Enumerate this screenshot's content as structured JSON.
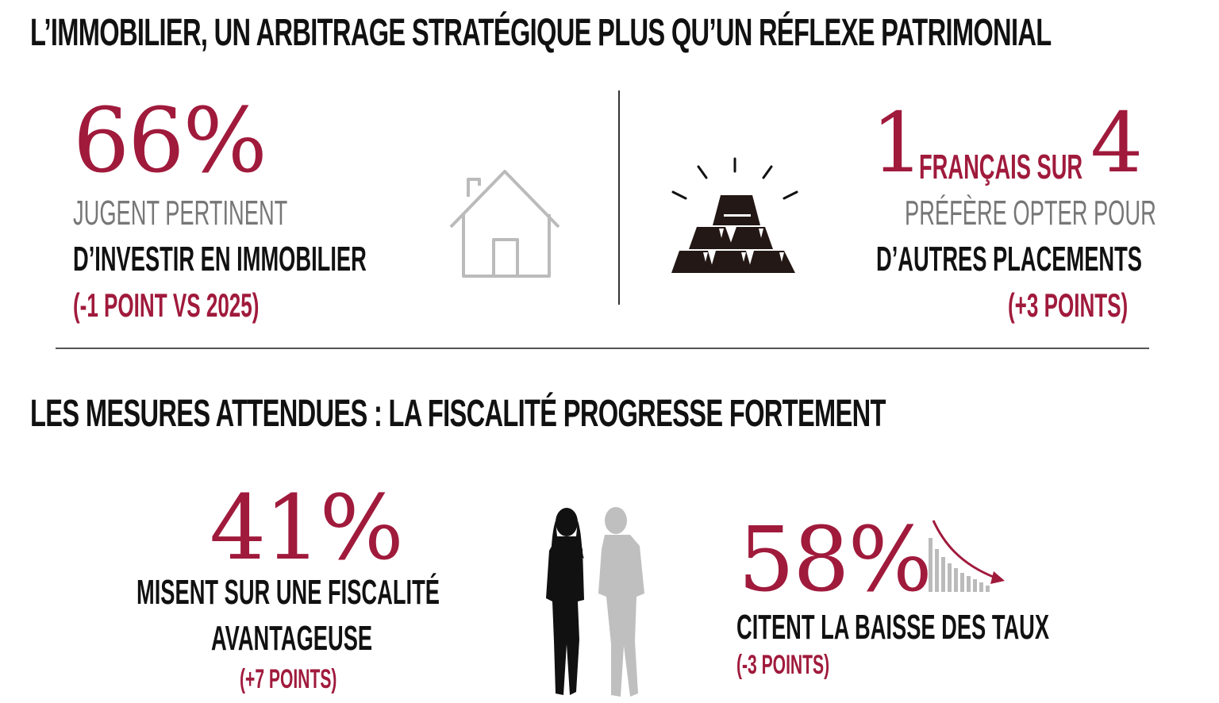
{
  "section1": {
    "title": "L’IMMOBILIER, UN ARBITRAGE STRATÉGIQUE PLUS QU’UN RÉFLEXE PATRIMONIAL",
    "left": {
      "value": "66%",
      "line1": "JUGENT PERTINENT",
      "line2": "D’INVESTIR EN IMMOBILIER",
      "change": "(-1 POINT VS 2025)"
    },
    "right": {
      "num1": "1",
      "mid": "FRANÇAIS SUR",
      "num2": "4",
      "line1": "PRÉFÈRE OPTER POUR",
      "line2": "D’AUTRES PLACEMENTS",
      "change": "(+3 POINTS)"
    }
  },
  "section2": {
    "title": "LES MESURES ATTENDUES : LA FISCALITÉ PROGRESSE FORTEMENT",
    "left": {
      "value": "41%",
      "line1": "MISENT SUR UNE FISCALITÉ",
      "line2": "AVANTAGEUSE",
      "change": "(+7 POINTS)"
    },
    "right": {
      "value": "58%",
      "line1": "CITENT LA BAISSE DES TAUX",
      "change": "(-3 POINTS)"
    }
  },
  "icons": {
    "house": "house-icon",
    "gold": "gold-bars-icon",
    "people": "people-silhouettes-icon",
    "chart": "declining-bars-icon"
  },
  "colors": {
    "accent": "#a01a3c",
    "text": "#111111",
    "muted": "#777777",
    "icon_gray": "#bbbbbb"
  }
}
